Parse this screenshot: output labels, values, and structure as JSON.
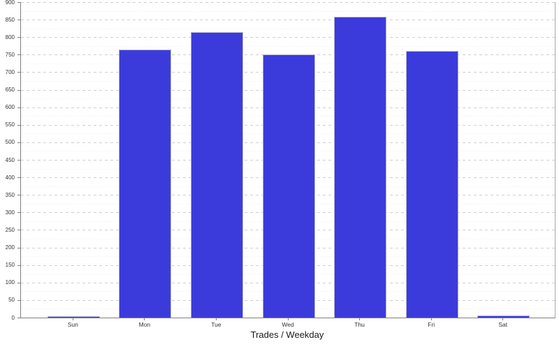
{
  "chart_data": {
    "type": "bar",
    "title": "Trades / Weekday",
    "categories": [
      "Sun",
      "Mon",
      "Tue",
      "Wed",
      "Thu",
      "Fri",
      "Sat"
    ],
    "values": [
      3,
      765,
      815,
      750,
      858,
      760,
      5
    ],
    "xlabel": "Trades / Weekday",
    "ylabel": "",
    "ylim": [
      0,
      900
    ],
    "ytick_step": 50,
    "y_ticks": [
      900,
      850,
      800,
      750,
      700,
      650,
      600,
      550,
      500,
      450,
      400,
      350,
      300,
      250,
      200,
      150,
      100,
      50,
      0
    ],
    "grid": "horizontal-dashed-major-with-faint-minor",
    "legend": "none",
    "colors": {
      "bar_fill": "#3b3bdb",
      "bar_border": "#b4b4d6",
      "axis_line": "#7f7f7f",
      "gridline_major": "#cfcfcf",
      "gridline_minor": "#ececec",
      "tick_label": "#333333",
      "title": "#1a1a1a",
      "background": "#ffffff"
    }
  }
}
